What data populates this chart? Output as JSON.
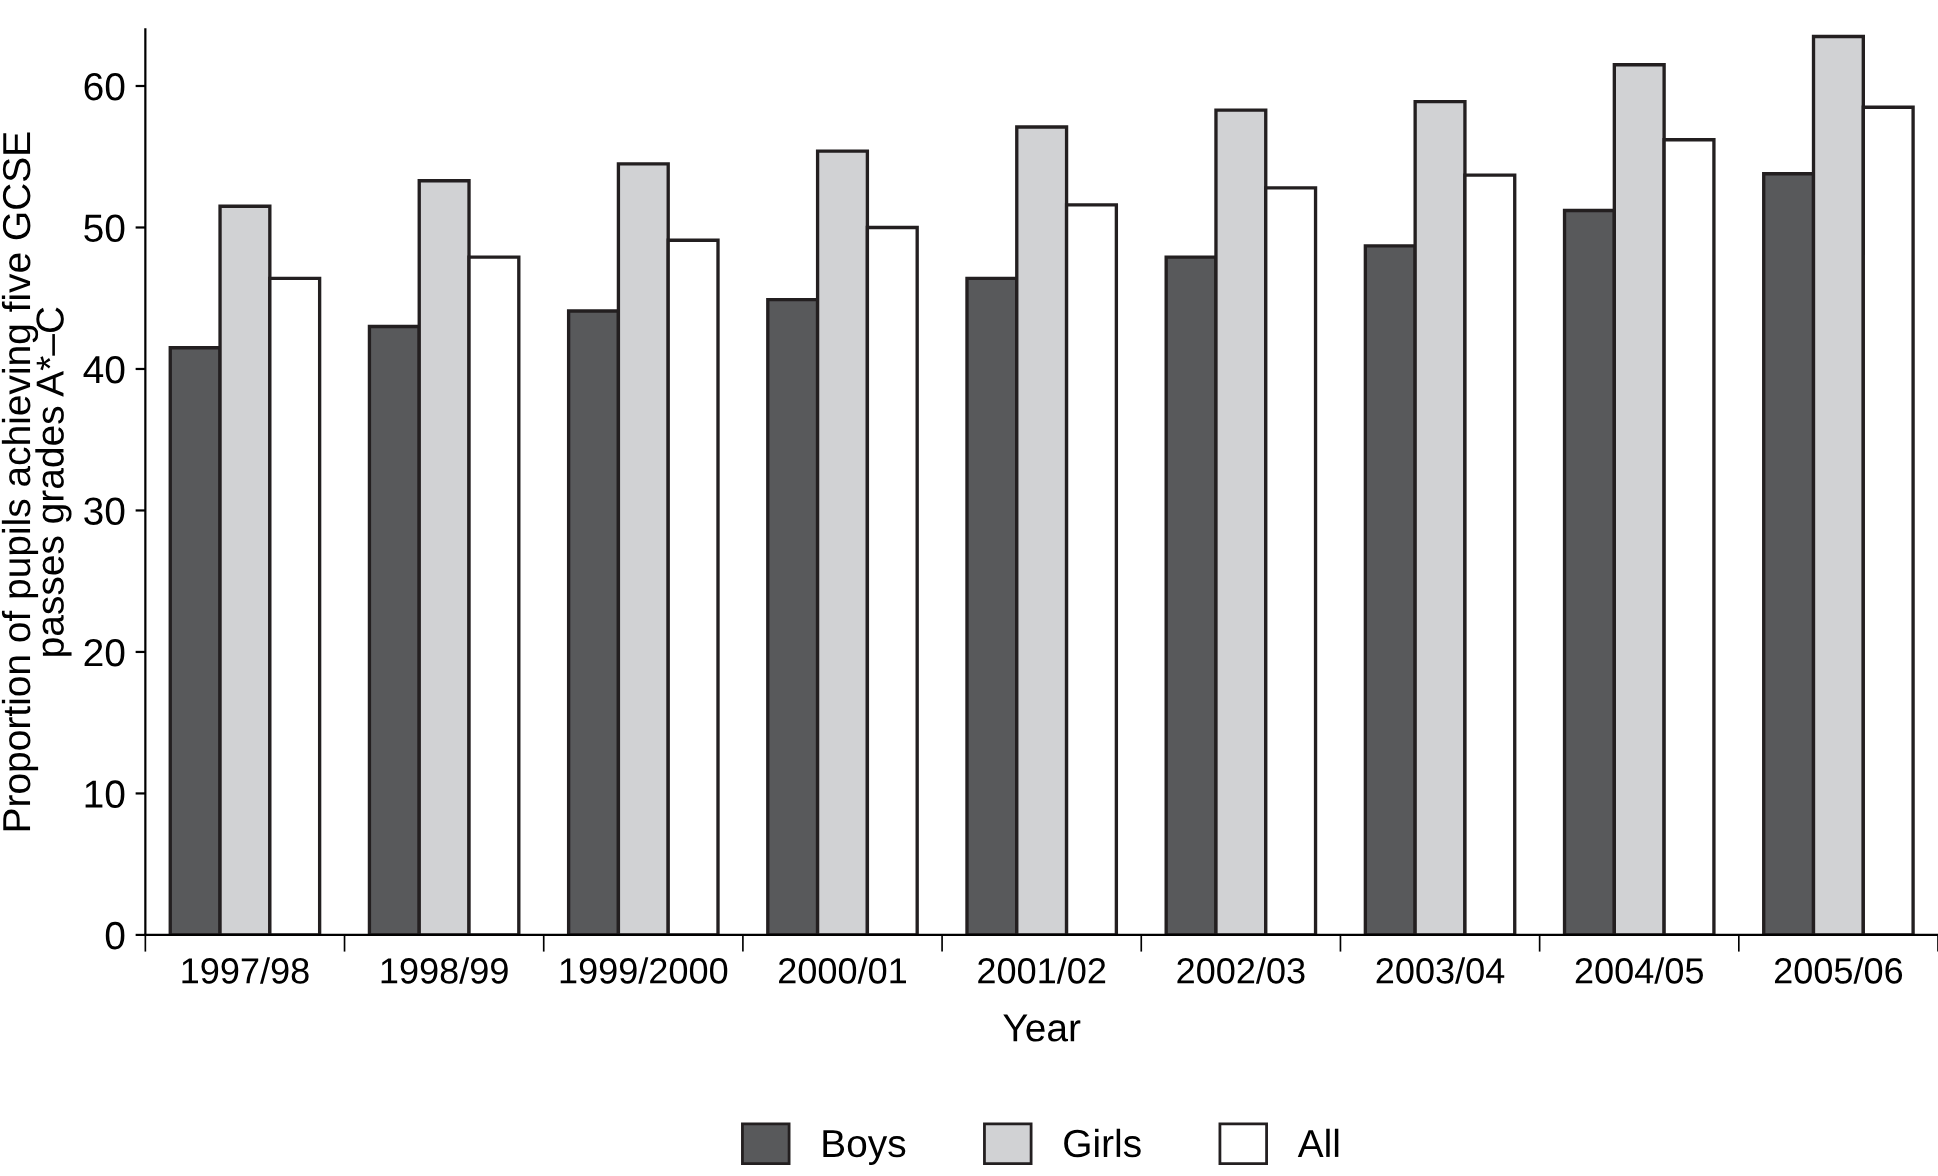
{
  "chart_data": {
    "type": "bar",
    "xlabel": "Year",
    "ylabel": "Proportion of pupils achieving five GCSE\npasses grades A*–C",
    "categories": [
      "1997/98",
      "1998/99",
      "1999/2000",
      "2000/01",
      "2001/02",
      "2002/03",
      "2003/04",
      "2004/05",
      "2005/06"
    ],
    "series": [
      {
        "name": "Boys",
        "color": "#58595b",
        "values": [
          41.5,
          43.0,
          44.1,
          44.9,
          46.4,
          47.9,
          48.7,
          51.2,
          53.8
        ]
      },
      {
        "name": "Girls",
        "color": "#d1d2d4",
        "values": [
          51.5,
          53.3,
          54.5,
          55.4,
          57.1,
          58.3,
          58.9,
          61.5,
          63.5
        ]
      },
      {
        "name": "All",
        "color": "#ffffff",
        "values": [
          46.4,
          47.9,
          49.1,
          50.0,
          51.6,
          52.8,
          53.7,
          56.2,
          58.5
        ]
      }
    ],
    "ylim": [
      0,
      64
    ],
    "yticks": [
      0,
      10,
      20,
      30,
      40,
      50,
      60
    ],
    "grid": false,
    "legend": "bottom"
  }
}
